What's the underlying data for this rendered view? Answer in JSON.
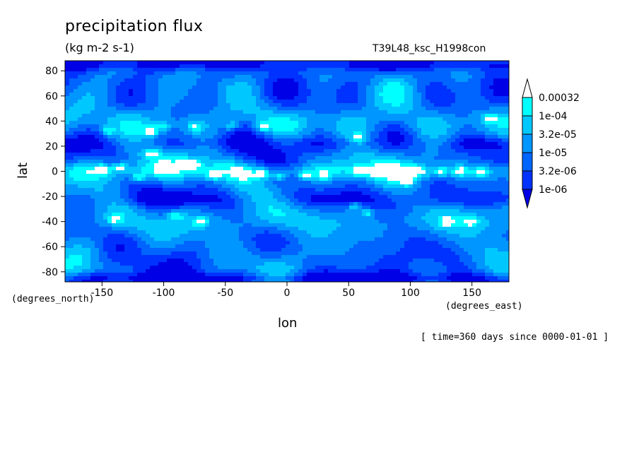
{
  "chart_data": {
    "type": "heatmap",
    "title": "precipitation flux",
    "units": "(kg m-2 s-1)",
    "run_label": "T39L48_ksc_H1998con",
    "xlabel": "lon",
    "ylabel": "lat",
    "x_units": "(degrees_east)",
    "y_units": "(degrees_north)",
    "timestamp": "[ time=360 days since 0000-01-01 ]",
    "xlim": [
      -180,
      180
    ],
    "ylim": [
      -88,
      88
    ],
    "x_ticks": [
      -150,
      -100,
      -50,
      0,
      50,
      100,
      150
    ],
    "y_ticks": [
      -80,
      -60,
      -40,
      -20,
      0,
      20,
      40,
      60,
      80
    ],
    "x_tick_labels": [
      "-150",
      "-100",
      "-50",
      "0",
      "50",
      "100",
      "150"
    ],
    "y_tick_labels": [
      "-80",
      "-60",
      "-40",
      "-20",
      "0",
      "20",
      "40",
      "60",
      "80"
    ],
    "colorbar": {
      "levels": [
        "0.00032",
        "1e-04",
        "3.2e-05",
        "1e-05",
        "3.2e-06",
        "1e-06"
      ],
      "colors": [
        "#ffffff",
        "#00ffff",
        "#00c8ff",
        "#0096ff",
        "#0064ff",
        "#0032ff",
        "#0000e6"
      ]
    }
  }
}
